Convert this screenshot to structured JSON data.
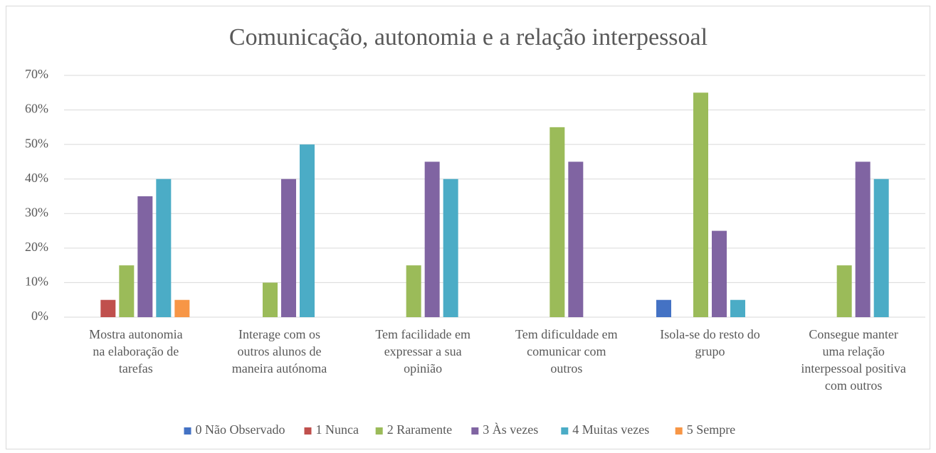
{
  "chart_data": {
    "type": "bar",
    "title": "Comunicação, autonomia e a relação interpessoal",
    "categories": [
      "Mostra autonomia\nna elaboração de\ntarefas",
      "Interage com os\noutros alunos de\nmaneira autónoma",
      "Tem facilidade em\nexpressar a sua\nopinião",
      "Tem dificuldade em\ncomunicar com\noutros",
      "Isola-se do resto do\ngrupo",
      "Consegue manter\numa relação\ninterpessoal positiva\ncom outros"
    ],
    "series": [
      {
        "name": "0 Não Observado",
        "color": "#4472c4",
        "values": [
          0,
          0,
          0,
          0,
          5,
          0
        ]
      },
      {
        "name": "1 Nunca",
        "color": "#c0504d",
        "values": [
          5,
          0,
          0,
          0,
          0,
          0
        ]
      },
      {
        "name": "2 Raramente",
        "color": "#9bbb59",
        "values": [
          15,
          10,
          15,
          55,
          65,
          15
        ]
      },
      {
        "name": "3 Às vezes",
        "color": "#8064a2",
        "values": [
          35,
          40,
          45,
          45,
          25,
          45
        ]
      },
      {
        "name": "4 Muitas vezes",
        "color": "#4bacc6",
        "values": [
          40,
          50,
          40,
          0,
          5,
          40
        ]
      },
      {
        "name": "5 Sempre",
        "color": "#f79646",
        "values": [
          5,
          0,
          0,
          0,
          0,
          0
        ]
      }
    ],
    "ylim": [
      0,
      70
    ],
    "yticks": [
      {
        "value": 0,
        "label": "0%"
      },
      {
        "value": 10,
        "label": "10%"
      },
      {
        "value": 20,
        "label": "20%"
      },
      {
        "value": 30,
        "label": "30%"
      },
      {
        "value": 40,
        "label": "40%"
      },
      {
        "value": 50,
        "label": "50%"
      },
      {
        "value": 60,
        "label": "60%"
      },
      {
        "value": 70,
        "label": "70%"
      }
    ],
    "grid": true,
    "legend": "bottom"
  }
}
